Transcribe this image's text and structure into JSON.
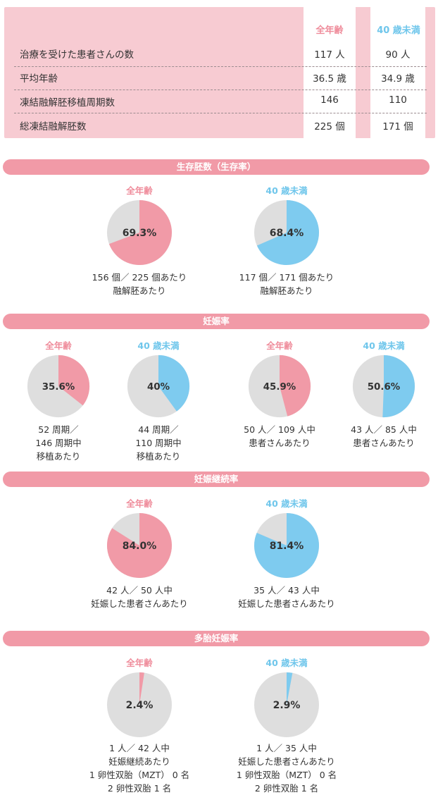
{
  "summary": {
    "col_all": "全年齢",
    "col_u40": "40 歳未満",
    "rows": [
      {
        "label": "治療を受けた患者さんの数",
        "all": "117 人",
        "u40": "90 人"
      },
      {
        "label": "平均年齢",
        "all": "36.5 歳",
        "u40": "34.9 歳"
      },
      {
        "label": "凍結融解胚移植周期数",
        "all": "146",
        "u40": "110"
      },
      {
        "label": "総凍結融解胚数",
        "all": "225 個",
        "u40": "171 個"
      }
    ]
  },
  "colors": {
    "all": "#f19aa7",
    "u40": "#7ecbef",
    "rest": "#dedede",
    "bar": "#f19aa7",
    "summary_bg": "#f7cbd2"
  },
  "sections": {
    "survival": {
      "title": "生存胚数（生存率）",
      "pies": [
        {
          "label": "全年齢",
          "group": "all",
          "pct_text": "69.3%",
          "lines": [
            "156 個／ 225 個あたり",
            "融解胚あたり"
          ]
        },
        {
          "label": "40 歳未満",
          "group": "u40",
          "pct_text": "68.4%",
          "lines": [
            "117 個／ 171 個あたり",
            "融解胚あたり"
          ]
        }
      ]
    },
    "pregnancy": {
      "title": "妊娠率",
      "pies": [
        {
          "label": "全年齢",
          "group": "all",
          "pct_text": "35.6%",
          "lines": [
            "52 周期／",
            "146 周期中",
            "移植あたり"
          ]
        },
        {
          "label": "40 歳未満",
          "group": "u40",
          "pct_text": "40%",
          "lines": [
            "44 周期／",
            "110 周期中",
            "移植あたり"
          ]
        },
        {
          "label": "全年齢",
          "group": "all",
          "pct_text": "45.9%",
          "lines": [
            "50 人／ 109 人中",
            "患者さんあたり"
          ]
        },
        {
          "label": "40 歳未満",
          "group": "u40",
          "pct_text": "50.6%",
          "lines": [
            "43 人／ 85 人中",
            "患者さんあたり"
          ]
        }
      ]
    },
    "continuation": {
      "title": "妊娠継続率",
      "pies": [
        {
          "label": "全年齢",
          "group": "all",
          "pct_text": "84.0%",
          "lines": [
            "42 人／ 50 人中",
            "妊娠した患者さんあたり"
          ]
        },
        {
          "label": "40 歳未満",
          "group": "u40",
          "pct_text": "81.4%",
          "lines": [
            "35 人／ 43 人中",
            "妊娠した患者さんあたり"
          ]
        }
      ]
    },
    "multiple": {
      "title": "多胎妊娠率",
      "pies": [
        {
          "label": "全年齢",
          "group": "all",
          "pct_text": "2.4%",
          "lines": [
            "1 人／ 42 人中",
            "妊娠継続あたり",
            "1 卵性双胎（MZT） 0 名",
            "2 卵性双胎 1 名"
          ]
        },
        {
          "label": "40 歳未満",
          "group": "u40",
          "pct_text": "2.9%",
          "lines": [
            "1 人／ 35 人中",
            "妊娠した患者さんあたり",
            "1 卵性双胎（MZT） 0 名",
            "2 卵性双胎 1 名"
          ]
        }
      ]
    }
  },
  "chart_data": [
    {
      "type": "pie",
      "title": "生存胚数（生存率）",
      "categories": [
        "全年齢",
        "40 歳未満"
      ],
      "values": [
        69.3,
        68.4
      ],
      "unit": "%"
    },
    {
      "type": "pie",
      "title": "妊娠率",
      "categories": [
        "全年齢（移植あたり）",
        "40 歳未満（移植あたり）",
        "全年齢（患者さんあたり）",
        "40 歳未満（患者さんあたり）"
      ],
      "values": [
        35.6,
        40.0,
        45.9,
        50.6
      ],
      "unit": "%"
    },
    {
      "type": "pie",
      "title": "妊娠継続率",
      "categories": [
        "全年齢",
        "40 歳未満"
      ],
      "values": [
        84.0,
        81.4
      ],
      "unit": "%"
    },
    {
      "type": "pie",
      "title": "多胎妊娠率",
      "categories": [
        "全年齢",
        "40 歳未満"
      ],
      "values": [
        2.4,
        2.9
      ],
      "unit": "%"
    }
  ]
}
